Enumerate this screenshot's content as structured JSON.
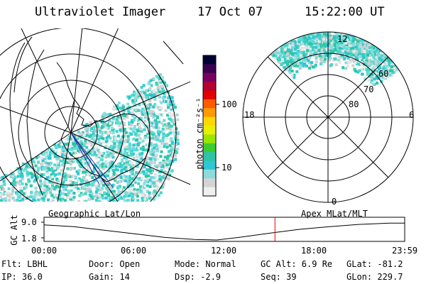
{
  "header": {
    "instrument": "Ultraviolet Imager",
    "date": "17 Oct 07",
    "time": "15:22:00 UT"
  },
  "geo_map": {
    "caption": "Geographic Lat/Lon"
  },
  "polar_plot": {
    "caption": "Apex MLat/MLT",
    "mlt_labels": {
      "top": "12",
      "left": "18",
      "right": "6",
      "bottom": "0"
    },
    "mlat_labels": [
      "60",
      "70",
      "80"
    ]
  },
  "colorbar": {
    "unit": "photon cm⁻²s⁻¹",
    "ticks": [
      "100",
      "10"
    ],
    "scale": "log",
    "colors": [
      "#000033",
      "#3a0050",
      "#7a0060",
      "#b40032",
      "#e00000",
      "#ff5a00",
      "#ff9900",
      "#ffd800",
      "#e8f000",
      "#9ae600",
      "#3ccc2e",
      "#2ec4a6",
      "#2ec8d2",
      "#8cdcdc",
      "#d4d4d4",
      "#efefef"
    ]
  },
  "timeline": {
    "ylabel": "GC Alt",
    "yticks": [
      "9.0",
      "1.8"
    ],
    "xticks": [
      "00:00",
      "06:00",
      "12:00",
      "18:00",
      "23:59"
    ],
    "current_time_hours": 15.367,
    "marker_color": "#dd0000"
  },
  "info": {
    "filter": "Flt: LBHL",
    "ip": "IP: 36.0",
    "door": "Door: Open",
    "gain": "Gain: 14",
    "mode": "Mode: Normal",
    "dsp": "Dsp:   -2.9",
    "gc_alt": "GC Alt: 6.9 Re",
    "seq": "Seq: 39",
    "glat": "GLat: -81.2",
    "glon": "GLon: 229.7"
  }
}
